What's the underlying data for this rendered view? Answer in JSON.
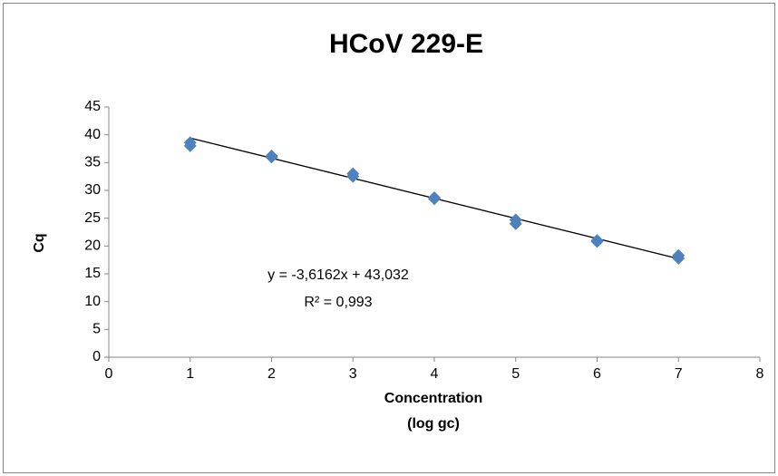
{
  "chart_data": {
    "type": "scatter",
    "title": "HCoV 229-E",
    "x_label": "Concentration",
    "x_label_sub": "(log gc)",
    "y_label": "Cq",
    "series": [
      {
        "name": "Cq",
        "color": "#4f81bd",
        "x": [
          1,
          1,
          2,
          2,
          3,
          3,
          4,
          4,
          5,
          5,
          6,
          6,
          7,
          7
        ],
        "values": [
          38,
          38.6,
          36,
          36.2,
          32.5,
          33,
          28.5,
          28.7,
          24,
          24.7,
          20.8,
          21,
          17.8,
          18.3
        ]
      }
    ],
    "trendline": {
      "slope": -3.6162,
      "intercept": 43.032,
      "color": "#000000",
      "equation": "y = -3,6162x + 43,032",
      "r_squared": "R² = 0,993"
    },
    "xlim": [
      0,
      8
    ],
    "xticks": [
      0,
      1,
      2,
      3,
      4,
      5,
      6,
      7,
      8
    ],
    "ylim": [
      0,
      45
    ],
    "yticks": [
      0,
      5,
      10,
      15,
      20,
      25,
      30,
      35,
      40,
      45
    ],
    "grid": false
  }
}
